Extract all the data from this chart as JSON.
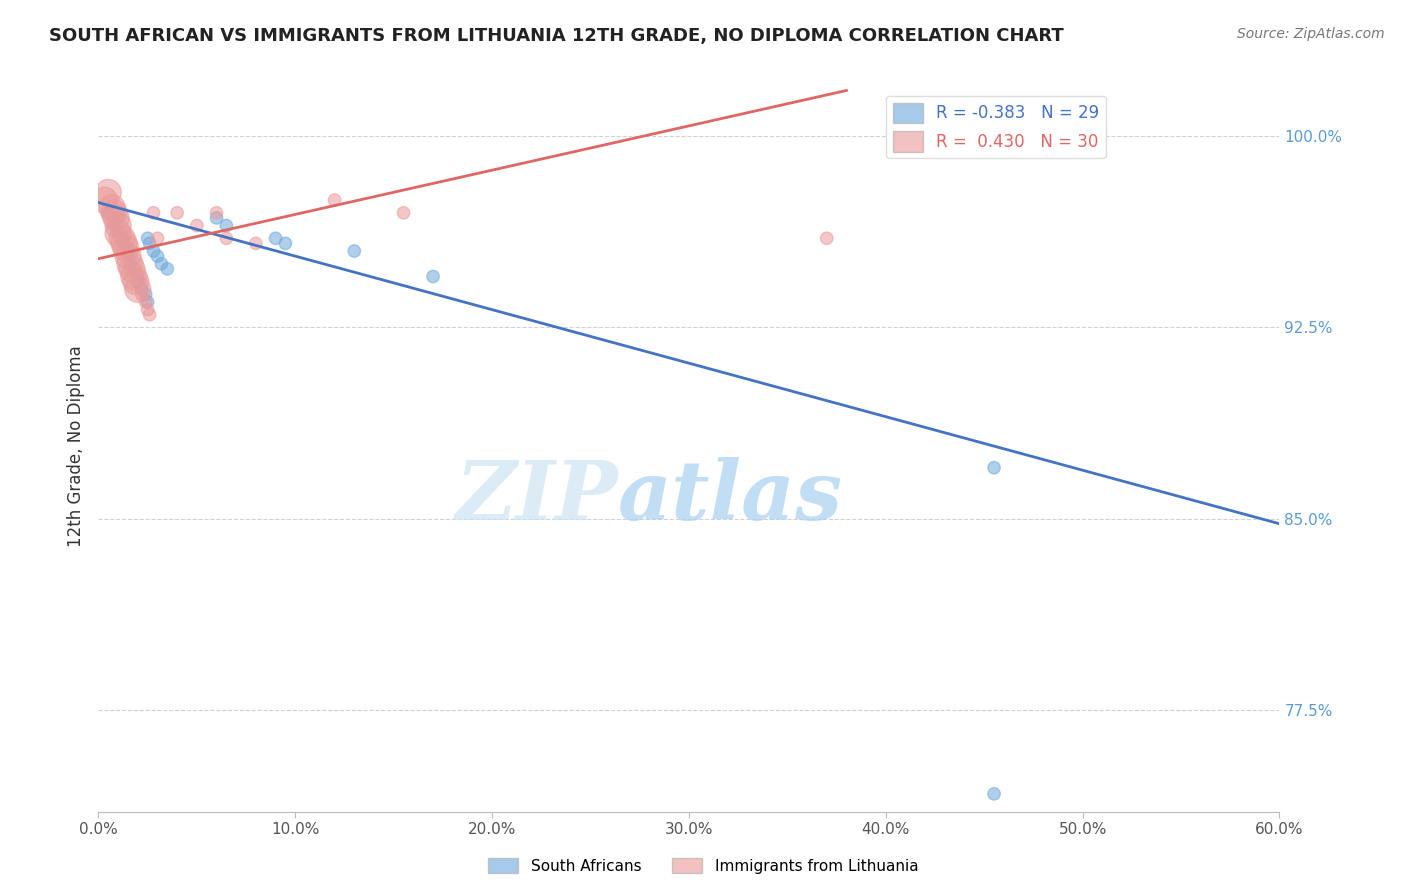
{
  "title": "SOUTH AFRICAN VS IMMIGRANTS FROM LITHUANIA 12TH GRADE, NO DIPLOMA CORRELATION CHART",
  "source": "Source: ZipAtlas.com",
  "ylabel": "12th Grade, No Diploma",
  "x_min": 0.0,
  "x_max": 0.6,
  "y_min": 0.735,
  "y_max": 1.022,
  "yticks": [
    0.775,
    0.85,
    0.925,
    1.0
  ],
  "ytick_labels": [
    "77.5%",
    "85.0%",
    "92.5%",
    "100.0%"
  ],
  "xticks": [
    0.0,
    0.1,
    0.2,
    0.3,
    0.4,
    0.5,
    0.6
  ],
  "xtick_labels": [
    "0.0%",
    "10.0%",
    "20.0%",
    "30.0%",
    "40.0%",
    "50.0%",
    "60.0%"
  ],
  "legend_bottom": [
    "South Africans",
    "Immigrants from Lithuania"
  ],
  "blue_R": -0.383,
  "blue_N": 29,
  "pink_R": 0.43,
  "pink_N": 30,
  "blue_color": "#6fa8dc",
  "pink_color": "#ea9999",
  "blue_line_color": "#4472c4",
  "pink_line_color": "#e06666",
  "blue_line_x": [
    0.0,
    0.6
  ],
  "blue_line_y": [
    0.974,
    0.848
  ],
  "pink_line_x": [
    0.0,
    0.38
  ],
  "pink_line_y": [
    0.952,
    1.018
  ],
  "blue_scatter_x": [
    0.005,
    0.008,
    0.01,
    0.01,
    0.012,
    0.013,
    0.015,
    0.015,
    0.016,
    0.018,
    0.02,
    0.02,
    0.022,
    0.024,
    0.025,
    0.025,
    0.026,
    0.028,
    0.03,
    0.032,
    0.035,
    0.06,
    0.065,
    0.09,
    0.095,
    0.13,
    0.17,
    0.455,
    0.455
  ],
  "blue_scatter_y": [
    0.97,
    0.965,
    0.968,
    0.962,
    0.96,
    0.958,
    0.955,
    0.953,
    0.95,
    0.948,
    0.945,
    0.943,
    0.94,
    0.938,
    0.935,
    0.96,
    0.958,
    0.955,
    0.953,
    0.95,
    0.948,
    0.968,
    0.965,
    0.96,
    0.958,
    0.955,
    0.945,
    0.742,
    0.87
  ],
  "blue_scatter_size": [
    80,
    80,
    80,
    80,
    80,
    80,
    80,
    80,
    80,
    80,
    80,
    80,
    80,
    80,
    80,
    80,
    80,
    80,
    80,
    80,
    80,
    80,
    80,
    80,
    80,
    80,
    80,
    80,
    80
  ],
  "pink_scatter_x": [
    0.003,
    0.005,
    0.007,
    0.008,
    0.009,
    0.01,
    0.01,
    0.012,
    0.013,
    0.014,
    0.015,
    0.016,
    0.017,
    0.018,
    0.019,
    0.02,
    0.022,
    0.024,
    0.025,
    0.026,
    0.028,
    0.03,
    0.04,
    0.05,
    0.06,
    0.065,
    0.08,
    0.12,
    0.155,
    0.37
  ],
  "pink_scatter_y": [
    0.975,
    0.978,
    0.972,
    0.97,
    0.968,
    0.965,
    0.962,
    0.96,
    0.958,
    0.956,
    0.953,
    0.95,
    0.948,
    0.945,
    0.943,
    0.94,
    0.938,
    0.935,
    0.932,
    0.93,
    0.97,
    0.96,
    0.97,
    0.965,
    0.97,
    0.96,
    0.958,
    0.975,
    0.97,
    0.96
  ],
  "pink_scatter_size": [
    350,
    350,
    350,
    350,
    350,
    350,
    350,
    350,
    350,
    350,
    350,
    350,
    350,
    350,
    350,
    350,
    80,
    80,
    80,
    80,
    80,
    80,
    80,
    80,
    80,
    80,
    80,
    80,
    80,
    80
  ]
}
